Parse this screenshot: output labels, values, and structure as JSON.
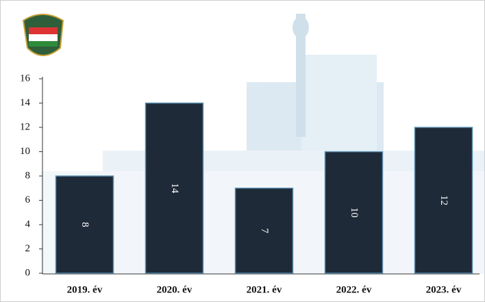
{
  "chart_data": {
    "type": "bar",
    "categories": [
      "2019. év",
      "2020. év",
      "2021. év",
      "2022. év",
      "2023. év"
    ],
    "values": [
      8,
      14,
      7,
      10,
      12
    ],
    "color": "#1f2a38",
    "ylim": [
      0,
      16
    ],
    "yticks": [
      0,
      2,
      4,
      6,
      8,
      10,
      12,
      14,
      16
    ],
    "data_labels": true
  }
}
